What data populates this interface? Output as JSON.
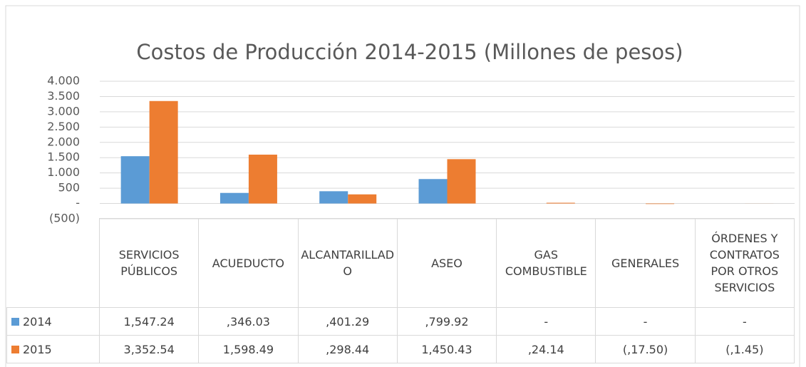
{
  "chart_data": {
    "type": "bar",
    "title": "Costos de Producción 2014-2015 (Millones de pesos)",
    "categories": [
      "SERVICIOS PÚBLICOS",
      "ACUEDUCTO",
      "ALCANTARILLADO",
      "ASEO",
      "GAS COMBUSTIBLE",
      "GENERALES",
      "ÓRDENES Y CONTRATOS POR OTROS SERVICIOS"
    ],
    "series": [
      {
        "name": "2014",
        "color": "#5b9bd5",
        "values": [
          1547.24,
          346.03,
          401.29,
          799.92,
          0,
          0,
          0
        ],
        "value_labels": [
          "1,547.24",
          ",346.03",
          ",401.29",
          ",799.92",
          "-",
          "-",
          "-"
        ]
      },
      {
        "name": "2015",
        "color": "#ed7d31",
        "values": [
          3352.54,
          1598.49,
          298.44,
          1450.43,
          24.14,
          -17.5,
          -1.45
        ],
        "value_labels": [
          "3,352.54",
          "1,598.49",
          ",298.44",
          "1,450.43",
          ",24.14",
          "(,17.50)",
          "(,1.45)"
        ]
      }
    ],
    "ylim": [
      -500,
      4000
    ],
    "yticks": [
      {
        "value": -500,
        "label": "(500)"
      },
      {
        "value": 0,
        "label": "-"
      },
      500,
      {
        "value": 1000,
        "label": "1.000"
      },
      {
        "value": 1500,
        "label": "1.500"
      },
      {
        "value": 2000,
        "label": "2.000"
      },
      {
        "value": 2500,
        "label": "2.500"
      },
      {
        "value": 3000,
        "label": "3.000"
      },
      {
        "value": 3500,
        "label": "3.500"
      },
      {
        "value": 4000,
        "label": "4.000"
      }
    ],
    "grid": true
  }
}
